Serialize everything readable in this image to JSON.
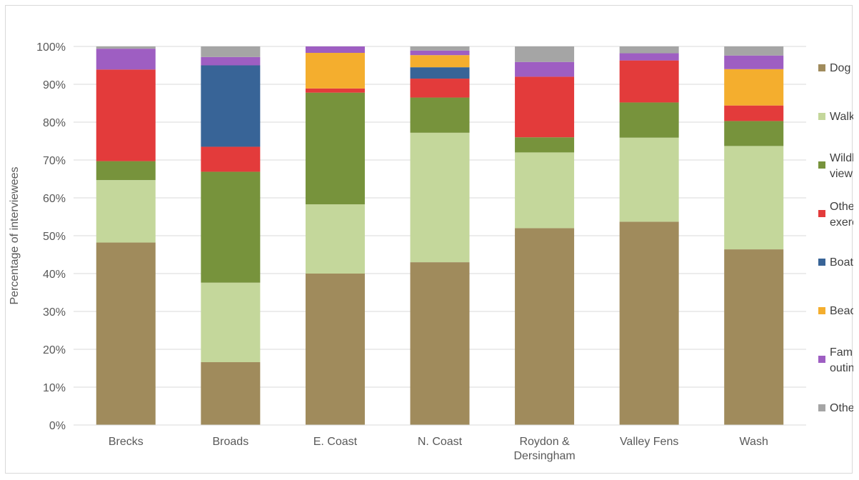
{
  "chart_data": {
    "type": "bar",
    "stacked": true,
    "ylabel": "Percentage of interviewees",
    "ylim": [
      0,
      100
    ],
    "y_ticks": [
      "0%",
      "10%",
      "20%",
      "30%",
      "40%",
      "50%",
      "60%",
      "70%",
      "80%",
      "90%",
      "100%"
    ],
    "grid": true,
    "legend_position": "right",
    "categories": [
      [
        "Brecks"
      ],
      [
        "Broads"
      ],
      [
        "E. Coast"
      ],
      [
        "N. Coast"
      ],
      [
        "Roydon &",
        "Dersingham"
      ],
      [
        "Valley Fens"
      ],
      [
        "Wash"
      ]
    ],
    "series": [
      {
        "name": [
          "Dog walking"
        ],
        "color": "#a08b5c",
        "values": [
          48.2,
          16.6,
          40.0,
          43.0,
          52.0,
          53.7,
          46.4
        ]
      },
      {
        "name": [
          "Walking"
        ],
        "color": "#c4d79b",
        "values": [
          16.5,
          21.0,
          18.3,
          34.2,
          20.0,
          22.2,
          27.3
        ]
      },
      {
        "name": [
          "Wildlife/scenery",
          "viewing"
        ],
        "color": "#77933c",
        "values": [
          5.0,
          29.3,
          29.5,
          9.3,
          4.0,
          9.3,
          6.6
        ]
      },
      {
        "name": [
          "Other",
          "exercise/recreation"
        ],
        "color": "#e33b3b",
        "values": [
          24.2,
          6.6,
          1.1,
          5.0,
          16.0,
          11.1,
          4.1
        ]
      },
      {
        "name": [
          "Boat activities"
        ],
        "color": "#386497",
        "values": [
          0,
          21.5,
          0,
          3.0,
          0,
          0,
          0
        ]
      },
      {
        "name": [
          "Beach Activity"
        ],
        "color": "#f4ae2e",
        "values": [
          0,
          0,
          9.4,
          3.2,
          0,
          0,
          9.6
        ]
      },
      {
        "name": [
          "Family/Group",
          "outings/events"
        ],
        "color": "#9e5ec2",
        "values": [
          5.5,
          2.2,
          1.7,
          1.2,
          3.9,
          1.9,
          3.6
        ]
      },
      {
        "name": [
          "Other"
        ],
        "color": "#a5a5a5",
        "values": [
          0.6,
          2.8,
          0,
          1.1,
          4.1,
          1.8,
          2.4
        ]
      }
    ]
  }
}
